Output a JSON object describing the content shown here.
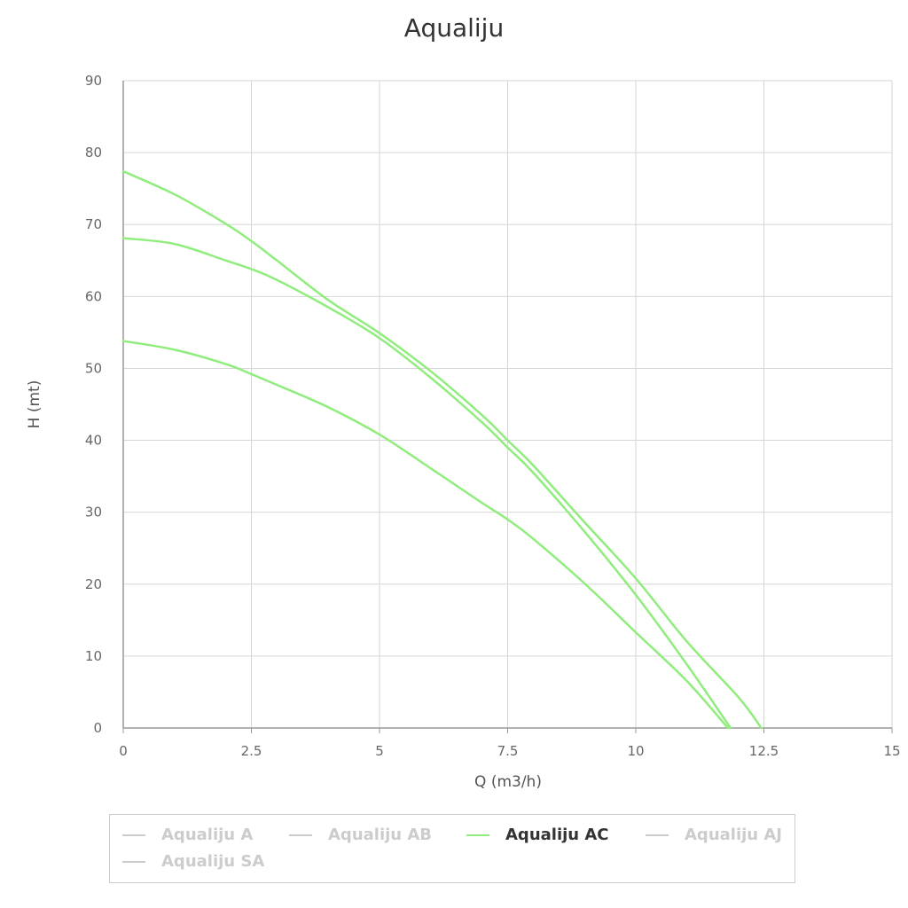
{
  "chart_data": {
    "type": "line",
    "title": "Aqualiju",
    "xlabel": "Q (m3/h)",
    "ylabel": "H (mt)",
    "xlim": [
      0,
      15
    ],
    "ylim": [
      0,
      90
    ],
    "x_ticks": [
      "0",
      "2.5",
      "5",
      "7.5",
      "10",
      "12.5",
      "15"
    ],
    "y_ticks": [
      "0",
      "10",
      "20",
      "30",
      "40",
      "50",
      "60",
      "70",
      "80",
      "90"
    ],
    "grid": true,
    "legend_position": "bottom",
    "line_color": "#90ed7d",
    "legend": [
      {
        "name": "Aqualiju A",
        "visible": false
      },
      {
        "name": "Aqualiju AB",
        "visible": false
      },
      {
        "name": "Aqualiju AC",
        "visible": true
      },
      {
        "name": "Aqualiju AJ",
        "visible": false
      },
      {
        "name": "Aqualiju SA",
        "visible": false
      }
    ],
    "series": [
      {
        "x": [
          0,
          1,
          2,
          2.5,
          3,
          4,
          5,
          6,
          7,
          7.5,
          8,
          9,
          10,
          11,
          12,
          12.45
        ],
        "y": [
          77.4,
          74.2,
          70.1,
          67.7,
          65.0,
          59.5,
          54.9,
          49.6,
          43.5,
          40.0,
          36.5,
          28.6,
          20.8,
          12.0,
          4.3,
          0
        ]
      },
      {
        "x": [
          0,
          1,
          2,
          2.5,
          3,
          4,
          5,
          6,
          7,
          7.5,
          8,
          9,
          10,
          11,
          11.85
        ],
        "y": [
          68.1,
          67.3,
          65.0,
          63.8,
          62.3,
          58.5,
          54.2,
          48.7,
          42.5,
          39.0,
          35.5,
          27.3,
          18.5,
          8.8,
          0
        ]
      },
      {
        "x": [
          0,
          1,
          2,
          2.5,
          3,
          4,
          5,
          6,
          7,
          7.5,
          8,
          9,
          10,
          11,
          11.8
        ],
        "y": [
          53.8,
          52.6,
          50.6,
          49.2,
          47.7,
          44.6,
          40.8,
          36.1,
          31.3,
          29.0,
          26.3,
          20.1,
          13.3,
          6.5,
          0
        ]
      }
    ]
  }
}
